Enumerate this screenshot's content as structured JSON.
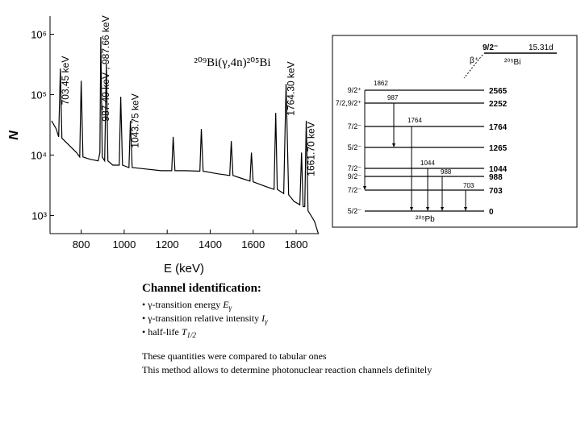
{
  "chart_data": {
    "type": "line",
    "title": "²⁰⁹Bi(γ,4n)²⁰⁵Bi",
    "x_label": "E (keV)",
    "y_label": "N",
    "x": [
      662,
      684,
      695,
      703,
      710,
      740,
      778,
      793,
      800,
      808,
      842,
      879,
      887,
      891,
      898,
      909,
      917,
      924,
      947,
      977,
      984,
      992,
      1022,
      1029,
      1037,
      1097,
      1172,
      1221,
      1228,
      1236,
      1284,
      1352,
      1359,
      1367,
      1434,
      1491,
      1498,
      1506,
      1547,
      1585,
      1592,
      1600,
      1660,
      1697,
      1705,
      1712,
      1742,
      1753,
      1765,
      1791,
      1817,
      1825,
      1832,
      1840,
      1847,
      1855,
      1885,
      1903
    ],
    "series": [
      {
        "color": "#000000",
        "values": [
          37000,
          27000,
          20000,
          270000,
          19000,
          15000,
          11000,
          9300,
          170000,
          9300,
          8500,
          8000,
          11000,
          900000,
          9300,
          8000,
          330000,
          8000,
          6800,
          6800,
          92000,
          6800,
          6200,
          37000,
          6200,
          5900,
          5500,
          5500,
          20000,
          5500,
          5500,
          5400,
          27000,
          5400,
          4900,
          4600,
          17000,
          4600,
          4100,
          3700,
          11000,
          3600,
          3000,
          2700,
          50000,
          2700,
          2300,
          150000,
          2200,
          1700,
          1500,
          11000,
          1400,
          1400,
          37000,
          1200,
          800,
          500
        ]
      }
    ],
    "xlim": [
      655,
      1905
    ],
    "xticks": [
      800,
      1000,
      1200,
      1400,
      1600,
      1800
    ],
    "ylim": [
      500,
      2000000
    ],
    "log_y": true,
    "yticks": [
      {
        "value": 1000,
        "label": "10³"
      },
      {
        "value": 10000,
        "label": "10⁴"
      },
      {
        "value": 100000,
        "label": "10⁵"
      },
      {
        "value": 1000000,
        "label": "10⁶"
      }
    ],
    "annotations": [
      {
        "text": "703.45 keV",
        "x": 703
      },
      {
        "text": "987.49 keV , 987.66 keV",
        "x": 891
      },
      {
        "text": "1043.75 keV",
        "x": 1029
      },
      {
        "text": "1764.30 keV",
        "x": 1753
      },
      {
        "text": "1661.70 keV",
        "x": 1847
      }
    ]
  },
  "level_scheme": {
    "parent_spin": "9/2⁻",
    "half_life": "15.31d",
    "decay": "β⁺",
    "parent": "²⁰⁵Bi",
    "daughter": "²⁰⁵Pb",
    "levels": [
      {
        "spin": "9/2⁺",
        "energy": "2565"
      },
      {
        "spin": "7/2,9/2⁺",
        "energy": "2252"
      },
      {
        "spin": "7/2⁻",
        "energy": "1764"
      },
      {
        "spin": "5/2⁻",
        "energy": "1265"
      },
      {
        "spin": "7/2⁻",
        "energy": "1044"
      },
      {
        "spin": "9/2⁻",
        "energy": "988"
      },
      {
        "spin": "7/2⁻",
        "energy": "703"
      },
      {
        "spin": "5/2⁻",
        "energy": "0"
      }
    ],
    "transitions": [
      "1862",
      "987",
      "1764",
      "1044",
      "988",
      "703"
    ]
  },
  "text": {
    "heading": "Channel  identification:",
    "bullets": [
      {
        "text": "• γ-transition energy ",
        "symbol": "E",
        "sub": "γ"
      },
      {
        "text": "• γ-transition relative intensity ",
        "symbol": "I",
        "sub": "γ"
      },
      {
        "text": "• half-life ",
        "symbol": "T",
        "sub": "1/2"
      }
    ],
    "lines": [
      "These quantities were compared to tabular ones",
      "This method allows to determine photonuclear reaction channels definitely"
    ]
  }
}
